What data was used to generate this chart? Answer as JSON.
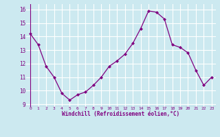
{
  "x": [
    0,
    1,
    2,
    3,
    4,
    5,
    6,
    7,
    8,
    9,
    10,
    11,
    12,
    13,
    14,
    15,
    16,
    17,
    18,
    19,
    20,
    21,
    22,
    23
  ],
  "y": [
    14.2,
    13.4,
    11.8,
    11.0,
    9.8,
    9.3,
    9.7,
    9.9,
    10.4,
    11.0,
    11.8,
    12.2,
    12.7,
    13.5,
    14.6,
    15.9,
    15.8,
    15.3,
    13.4,
    13.2,
    12.8,
    11.5,
    10.4,
    11.0
  ],
  "line_color": "#800080",
  "marker": "D",
  "marker_size": 2,
  "bg_color": "#cce9f0",
  "grid_color": "#ffffff",
  "xlabel": "Windchill (Refroidissement éolien,°C)",
  "xlabel_color": "#800080",
  "tick_color": "#800080",
  "ylim": [
    8.8,
    16.4
  ],
  "xlim": [
    -0.5,
    23.5
  ],
  "yticks": [
    9,
    10,
    11,
    12,
    13,
    14,
    15,
    16
  ],
  "xticks": [
    0,
    1,
    2,
    3,
    4,
    5,
    6,
    7,
    8,
    9,
    10,
    11,
    12,
    13,
    14,
    15,
    16,
    17,
    18,
    19,
    20,
    21,
    22,
    23
  ]
}
